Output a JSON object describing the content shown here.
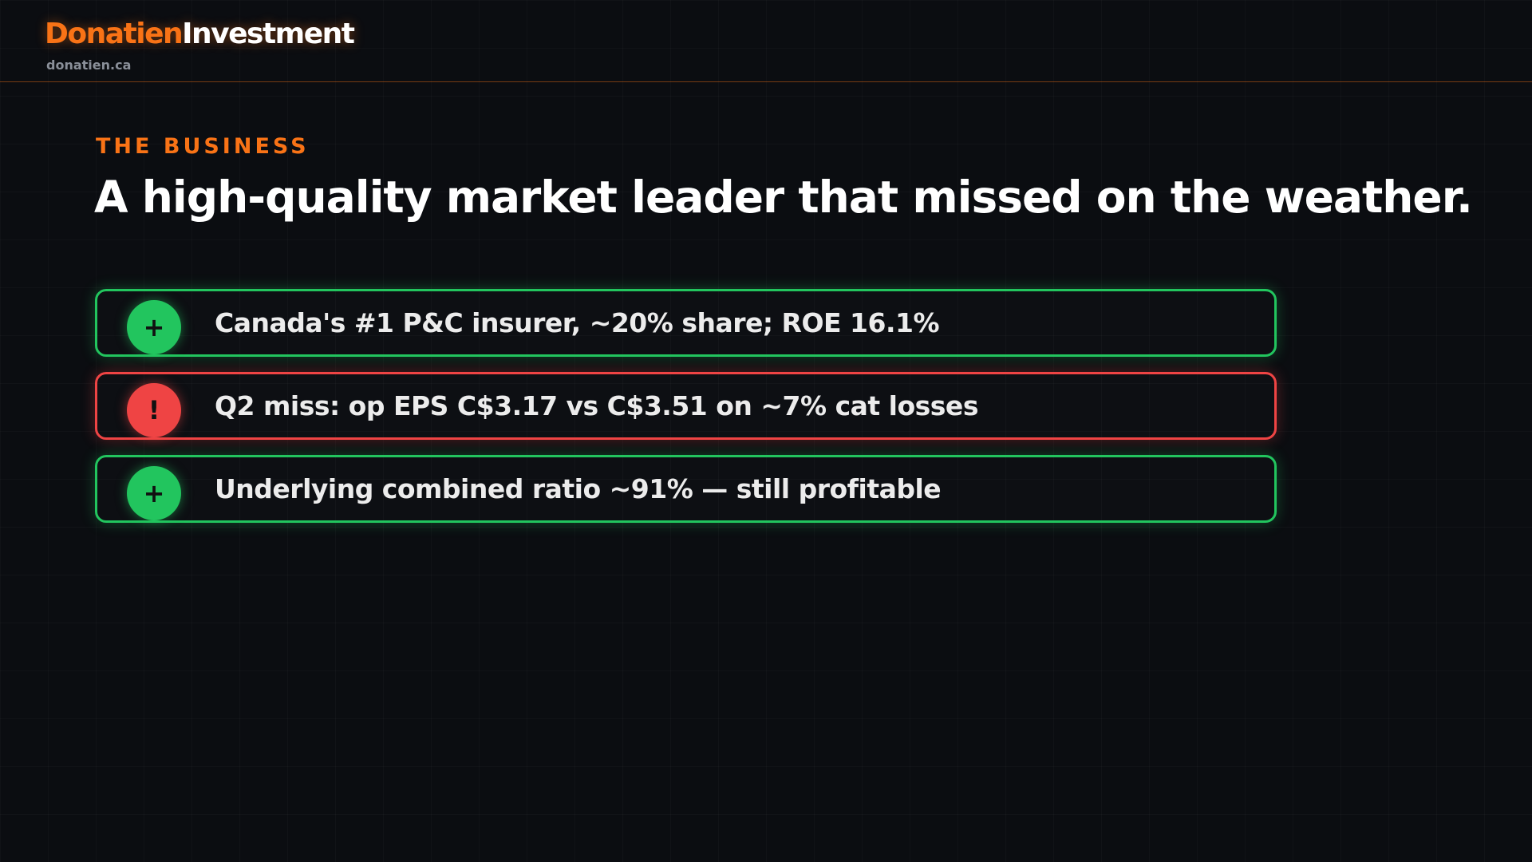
{
  "header": {
    "brand": [
      "Donatien",
      "Investment"
    ],
    "url": "donatien.ca"
  },
  "section": {
    "eyebrow": "THE BUSINESS",
    "title": "A high-quality market leader that missed on the weather."
  },
  "items": [
    {
      "icon": "+",
      "text": "Canada's #1 P&C insurer, ~20% share; ROE 16.1%",
      "color": "#22c55e"
    },
    {
      "icon": "!",
      "text": "Q2 miss: op EPS C$3.17 vs C$3.51 on ~7% cat losses",
      "color": "#ef4444"
    },
    {
      "icon": "+",
      "text": "Underlying combined ratio ~91% — still profitable",
      "color": "#22c55e"
    }
  ]
}
